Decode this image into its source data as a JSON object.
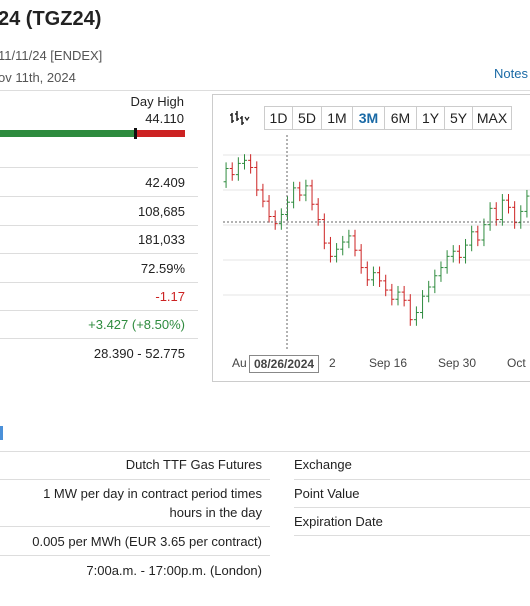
{
  "header": {
    "title": "24 (TGZ24)",
    "exchange_line": "11/11/24 [ENDEX]",
    "date_line": "ov 11th, 2024",
    "notes_link": "Notes"
  },
  "day_high": {
    "label": "Day High",
    "value": "44.110",
    "range_fraction": 0.74
  },
  "stats": {
    "row1": "42.409",
    "row2": "108,685",
    "row3": "181,033",
    "row4": "72.59%",
    "row5": "-1.17",
    "row6": "+3.427 (+8.50%)",
    "row7": "28.390 - 52.775"
  },
  "chart": {
    "tool_icon": "chart-type-icon",
    "ranges": [
      "1D",
      "5D",
      "1M",
      "3M",
      "6M",
      "1Y",
      "5Y",
      "MAX"
    ],
    "active_range": "3M",
    "x_labels": [
      "Au",
      "2",
      "Sep 16",
      "Sep 30",
      "Oct"
    ],
    "crosshair_date": "08/26/2024",
    "colors": {
      "up": "#2e8b3e",
      "down": "#cc2222"
    }
  },
  "chart_data": {
    "type": "candlestick",
    "x_labels": [
      "Au",
      "2",
      "Sep 16",
      "Sep 30",
      "Oct"
    ],
    "values": [
      {
        "o": 38.8,
        "c": 40.1
      },
      {
        "o": 40.1,
        "c": 39.5
      },
      {
        "o": 39.5,
        "c": 40.6
      },
      {
        "o": 40.6,
        "c": 40.9
      },
      {
        "o": 40.9,
        "c": 40.2
      },
      {
        "o": 40.2,
        "c": 38.0
      },
      {
        "o": 38.0,
        "c": 36.9
      },
      {
        "o": 36.9,
        "c": 35.4
      },
      {
        "o": 35.4,
        "c": 34.7
      },
      {
        "o": 34.7,
        "c": 35.6
      },
      {
        "o": 35.6,
        "c": 36.8
      },
      {
        "o": 36.8,
        "c": 38.2
      },
      {
        "o": 38.2,
        "c": 37.5
      },
      {
        "o": 37.5,
        "c": 38.4
      },
      {
        "o": 38.4,
        "c": 36.6
      },
      {
        "o": 36.6,
        "c": 35.1
      },
      {
        "o": 35.1,
        "c": 32.8
      },
      {
        "o": 32.8,
        "c": 31.5
      },
      {
        "o": 31.5,
        "c": 32.2
      },
      {
        "o": 32.2,
        "c": 32.9
      },
      {
        "o": 32.9,
        "c": 33.5
      },
      {
        "o": 33.5,
        "c": 32.1
      },
      {
        "o": 32.1,
        "c": 30.4
      },
      {
        "o": 30.4,
        "c": 29.2
      },
      {
        "o": 29.2,
        "c": 29.9
      },
      {
        "o": 29.9,
        "c": 29.1
      },
      {
        "o": 29.1,
        "c": 28.2
      },
      {
        "o": 28.2,
        "c": 27.3
      },
      {
        "o": 27.3,
        "c": 28.0
      },
      {
        "o": 28.0,
        "c": 27.2
      },
      {
        "o": 27.2,
        "c": 25.3
      },
      {
        "o": 25.3,
        "c": 26.0
      },
      {
        "o": 26.0,
        "c": 27.6
      },
      {
        "o": 27.6,
        "c": 28.5
      },
      {
        "o": 28.5,
        "c": 29.6
      },
      {
        "o": 29.6,
        "c": 30.4
      },
      {
        "o": 30.4,
        "c": 31.5
      },
      {
        "o": 31.5,
        "c": 32.0
      },
      {
        "o": 32.0,
        "c": 31.4
      },
      {
        "o": 31.4,
        "c": 32.6
      },
      {
        "o": 32.6,
        "c": 33.9
      },
      {
        "o": 33.9,
        "c": 33.1
      },
      {
        "o": 33.1,
        "c": 34.6
      },
      {
        "o": 34.6,
        "c": 36.2
      },
      {
        "o": 36.2,
        "c": 35.1
      },
      {
        "o": 35.1,
        "c": 37.0
      },
      {
        "o": 37.0,
        "c": 36.3
      },
      {
        "o": 36.3,
        "c": 34.8
      },
      {
        "o": 34.8,
        "c": 35.9
      },
      {
        "o": 35.9,
        "c": 37.4
      }
    ]
  },
  "specs": [
    {
      "left": "Dutch TTF Gas Futures",
      "right": "Exchange"
    },
    {
      "left_lines": [
        "1 MW per day in contract period times",
        "hours in the day"
      ],
      "right": "Point Value",
      "right2": "Expiration Date"
    },
    {
      "left": "0.005 per MWh (EUR 3.65 per contract)"
    },
    {
      "left": "7:00a.m. - 17:00p.m. (London)"
    }
  ]
}
